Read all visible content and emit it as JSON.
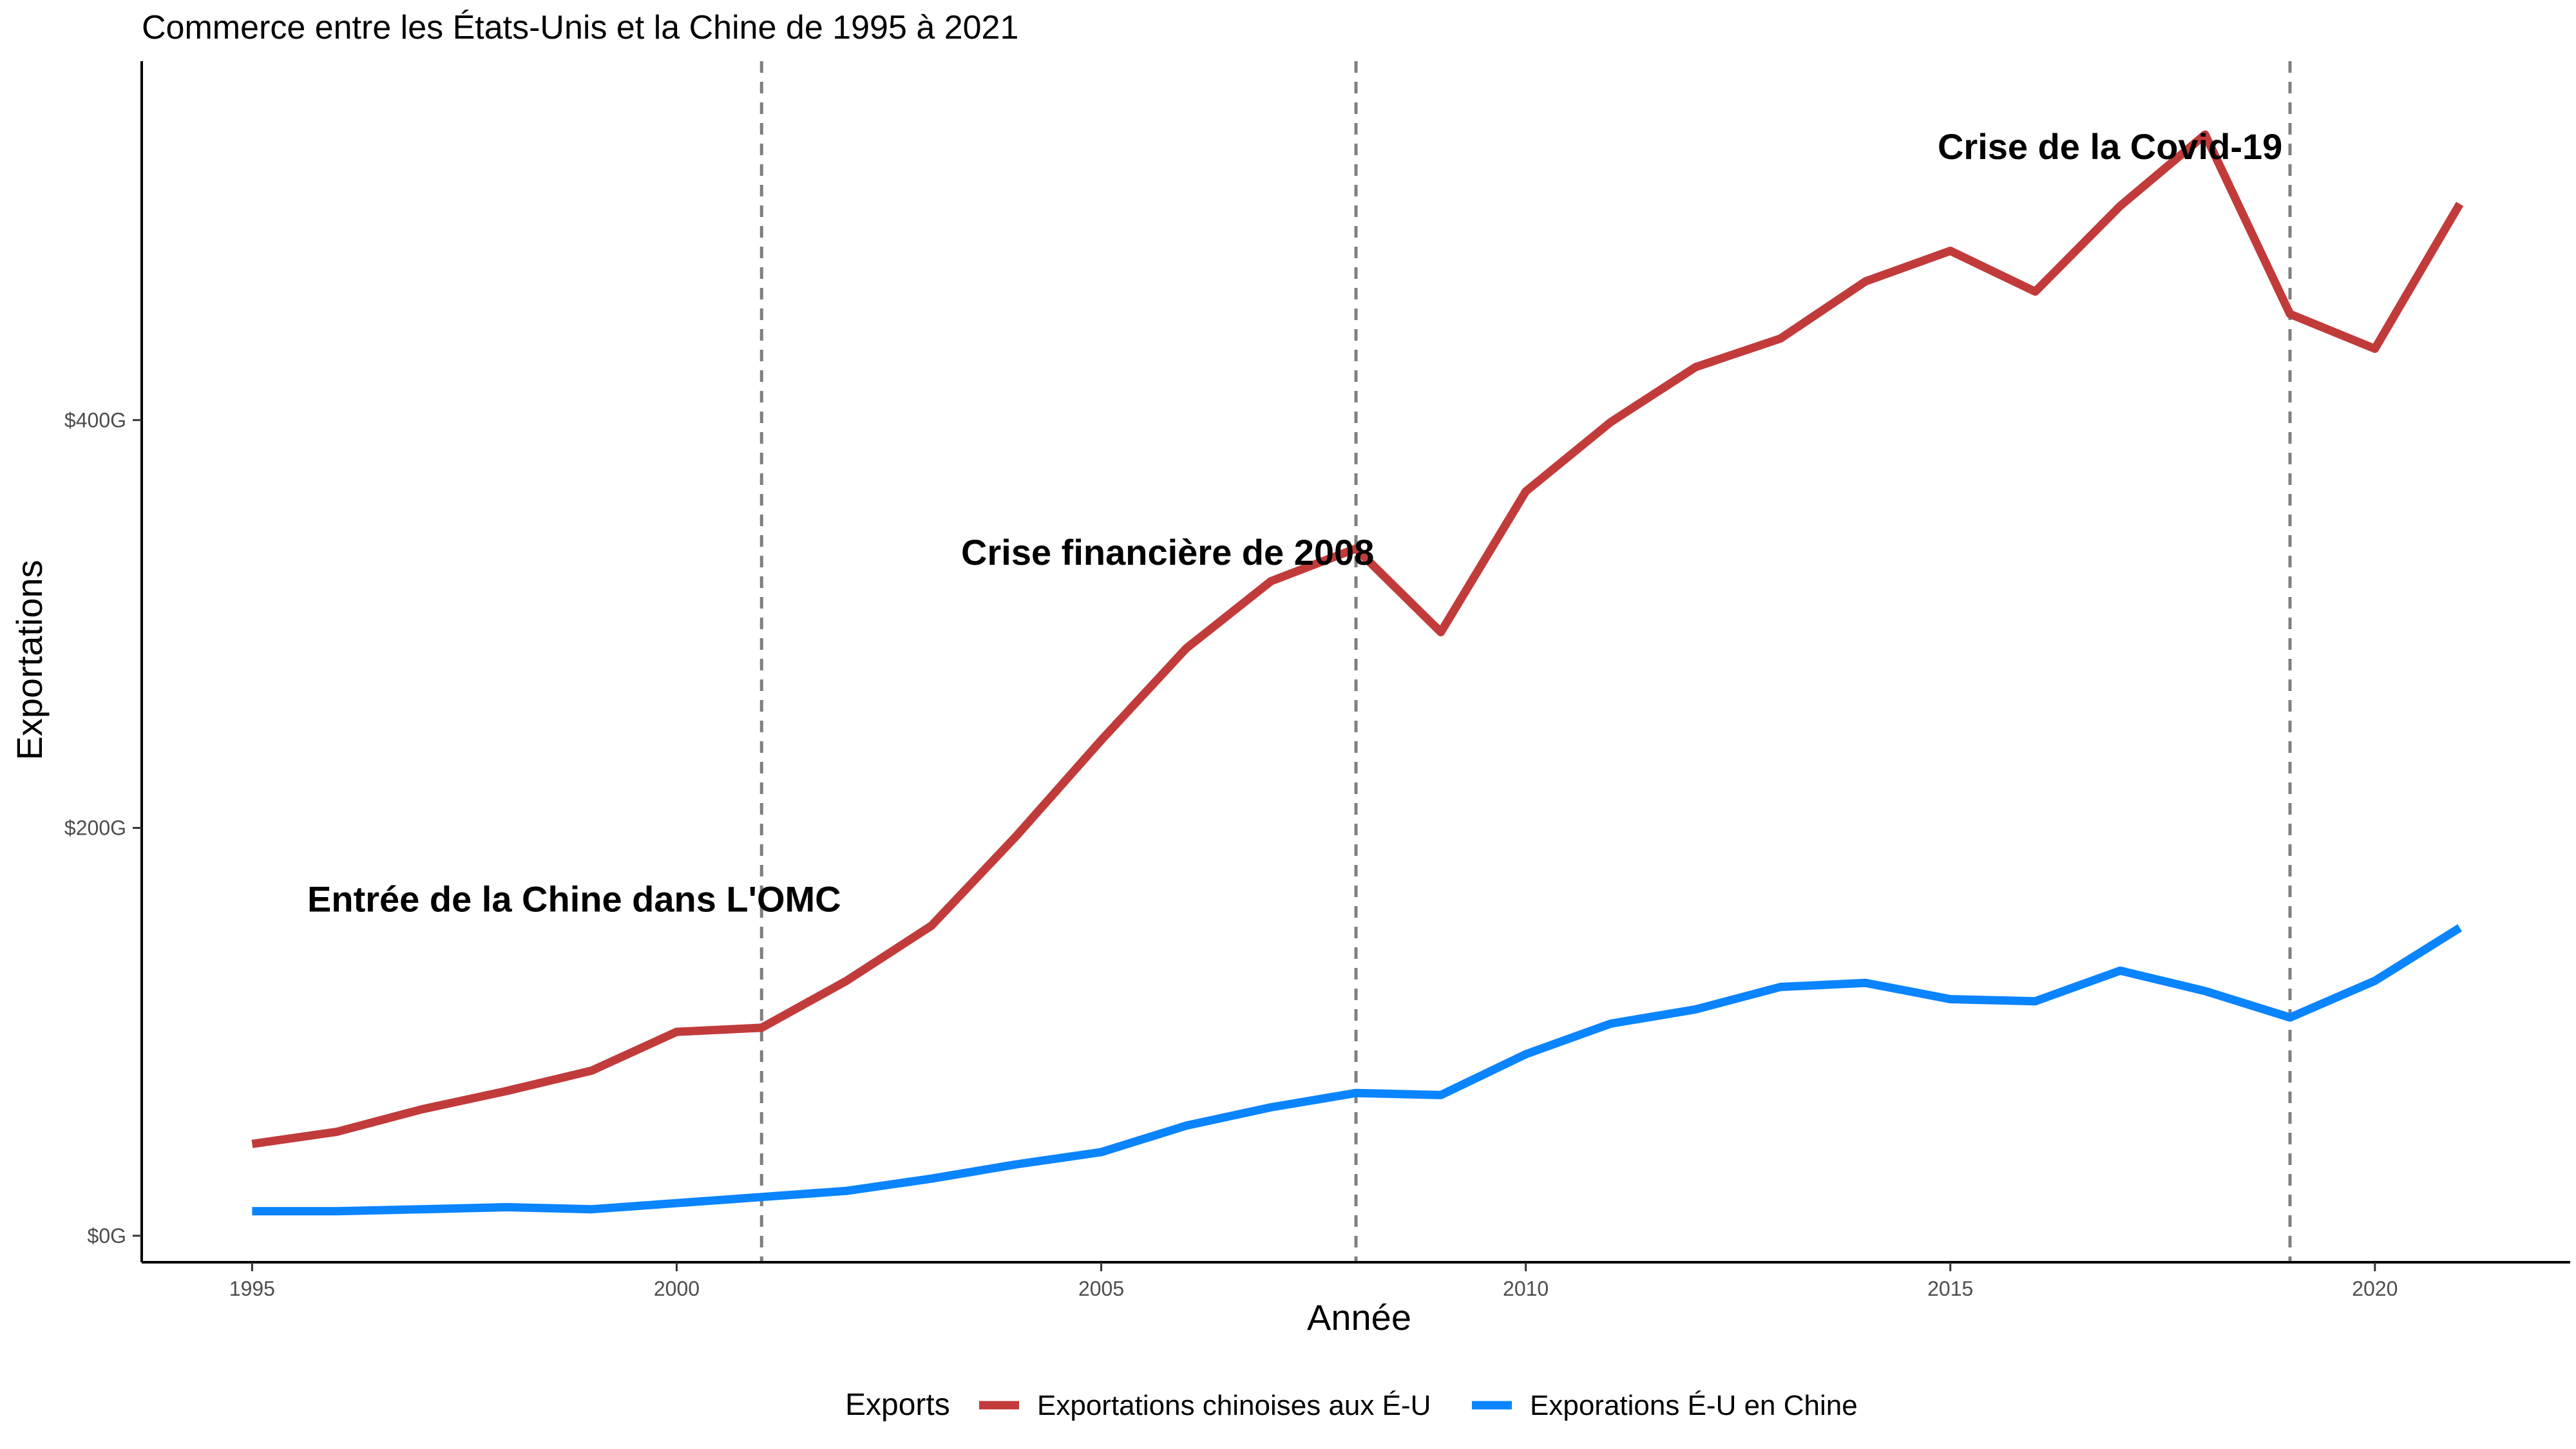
{
  "chart_data": {
    "type": "line",
    "title": "Commerce entre les États-Unis et la Chine de 1995 à 2021",
    "xlabel": "Année",
    "ylabel": "Exportations",
    "x": [
      1995,
      1996,
      1997,
      1998,
      1999,
      2000,
      2001,
      2002,
      2003,
      2004,
      2005,
      2006,
      2007,
      2008,
      2009,
      2010,
      2011,
      2012,
      2013,
      2014,
      2015,
      2016,
      2017,
      2018,
      2019,
      2020,
      2021
    ],
    "x_ticks": [
      {
        "value": 1995,
        "label": "1995"
      },
      {
        "value": 2000,
        "label": "2000"
      },
      {
        "value": 2005,
        "label": "2005"
      },
      {
        "value": 2010,
        "label": "2010"
      },
      {
        "value": 2015,
        "label": "2015"
      },
      {
        "value": 2020,
        "label": "2020"
      }
    ],
    "y_ticks": [
      {
        "value": 0,
        "label": "$0G"
      },
      {
        "value": 200,
        "label": "$200G"
      },
      {
        "value": 400,
        "label": "$400G"
      }
    ],
    "xlim": [
      1993.7,
      2022.3
    ],
    "ylim": [
      -13,
      576
    ],
    "grid": false,
    "legend": {
      "title": "Exports",
      "position": "bottom"
    },
    "series": [
      {
        "name": "Exportations chinoises aux É-U",
        "color": "#c23b3b",
        "values": [
          45,
          51,
          62,
          71,
          81,
          100,
          102,
          125,
          152,
          196,
          243,
          288,
          321,
          337,
          296,
          365,
          399,
          426,
          440,
          468,
          483,
          463,
          505,
          540,
          452,
          435,
          506
        ]
      },
      {
        "name": "Exporations É-U en Chine",
        "color": "#0a84ff",
        "values": [
          12,
          12,
          13,
          14,
          13,
          16,
          19,
          22,
          28,
          35,
          41,
          54,
          63,
          70,
          69,
          89,
          104,
          111,
          122,
          124,
          116,
          115,
          130,
          120,
          107,
          125,
          151
        ]
      }
    ],
    "annotations": [
      {
        "text": "Entrée de la Chine dans L'OMC",
        "x": 1995.65,
        "y": 159
      },
      {
        "text": "Crise financière de 2008",
        "x": 2003.35,
        "y": 329
      },
      {
        "text": "Crise de la Covid-19",
        "x": 2014.85,
        "y": 528
      }
    ],
    "vlines": [
      2001,
      2008,
      2019
    ]
  }
}
